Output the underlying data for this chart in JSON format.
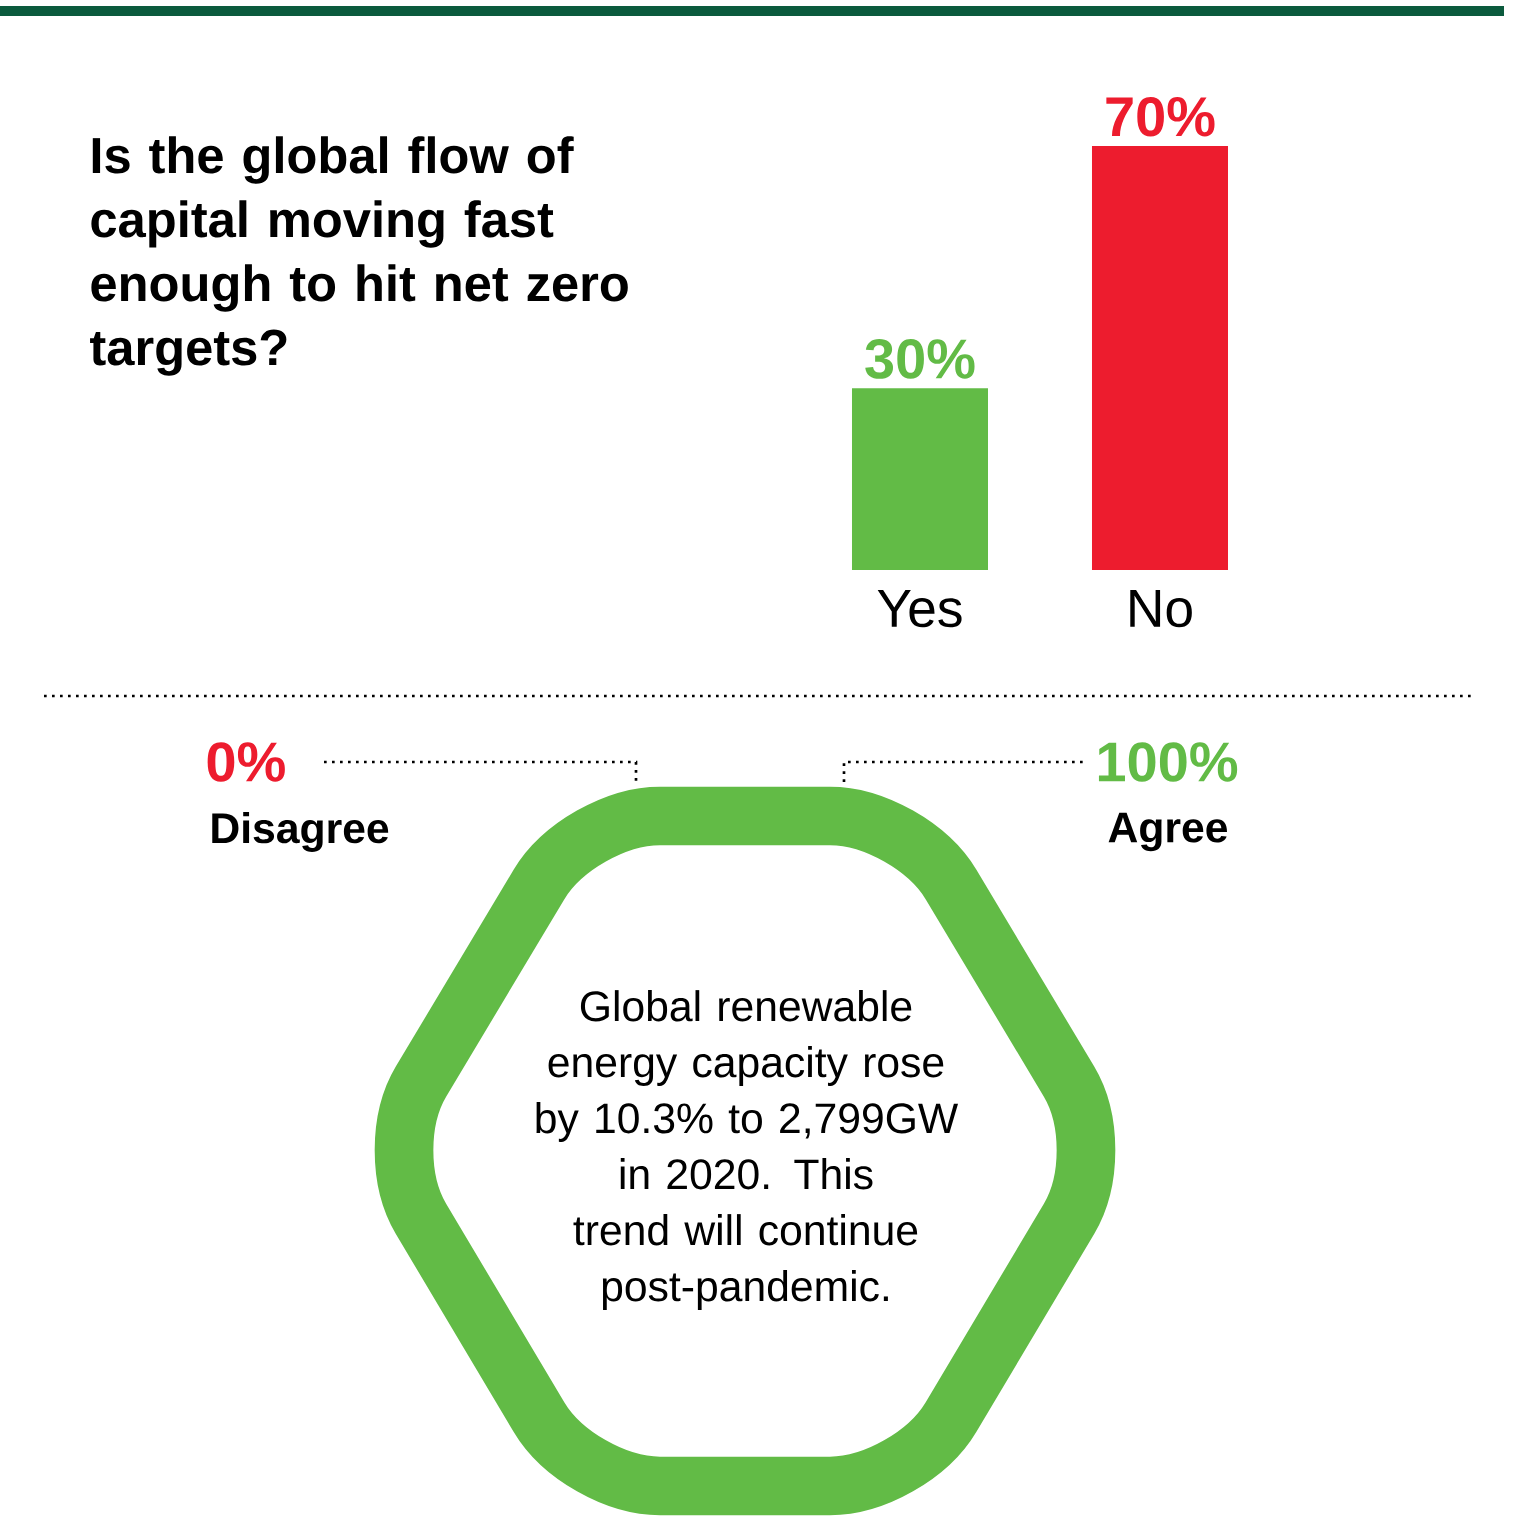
{
  "chart_data": [
    {
      "type": "bar",
      "title": "Is the global flow of capital moving fast enough to hit net zero targets?",
      "categories": [
        "Yes",
        "No"
      ],
      "values": [
        30,
        70
      ],
      "colors": [
        "#62bb46",
        "#ed1c2e"
      ],
      "value_labels": [
        "30%",
        "70%"
      ]
    },
    {
      "type": "other",
      "annotations": [
        "0%",
        "Disagree",
        "100%",
        "Agree",
        "Global renewable energy capacity rose by 10.3% to 2,799GW in 2020. This trend will continue post-pandemic."
      ]
    }
  ]
}
